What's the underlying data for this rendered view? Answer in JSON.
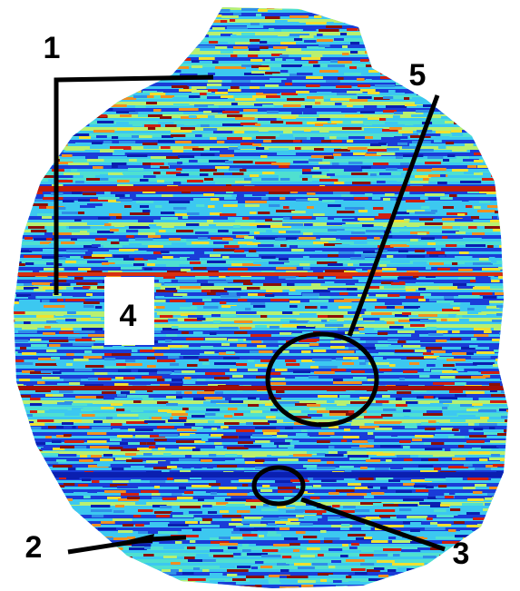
{
  "annotations": [
    "1",
    "2",
    "3",
    "4",
    "5"
  ]
}
